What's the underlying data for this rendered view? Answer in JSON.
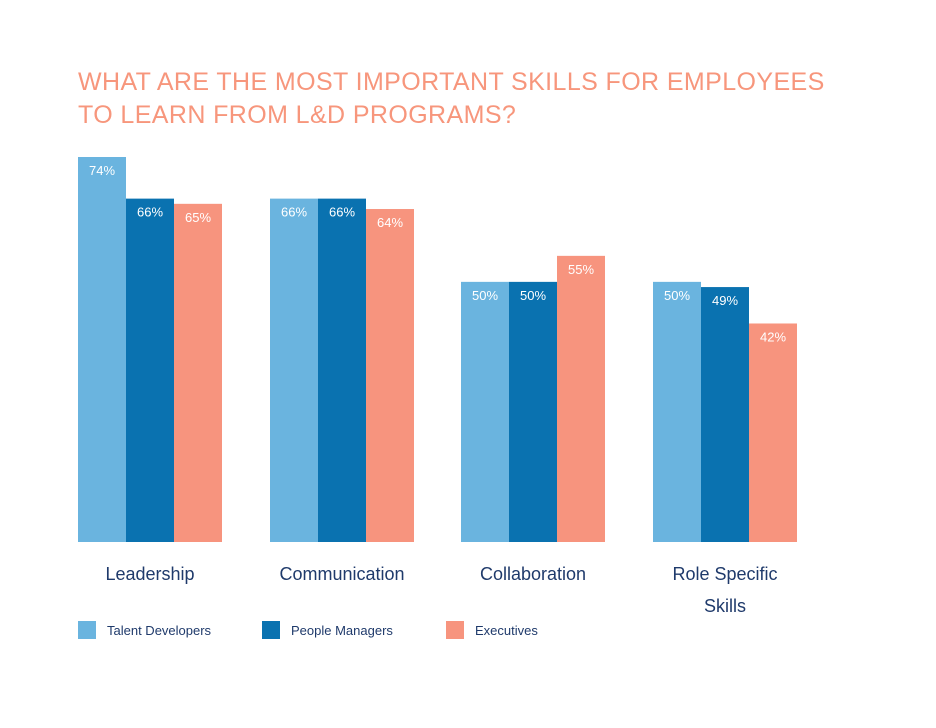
{
  "chart_data": {
    "type": "bar",
    "title": "WHAT ARE THE MOST IMPORTANT SKILLS FOR EMPLOYEES TO LEARN FROM L&D PROGRAMS?",
    "categories": [
      "Leadership",
      "Communication",
      "Collaboration",
      "Role Specific Skills"
    ],
    "series": [
      {
        "name": "Talent Developers",
        "color": "#6ab4df",
        "values": [
          74,
          66,
          50,
          50
        ]
      },
      {
        "name": "People Managers",
        "color": "#0a72b0",
        "values": [
          66,
          66,
          50,
          49
        ]
      },
      {
        "name": "Executives",
        "color": "#f7947e",
        "values": [
          65,
          64,
          55,
          42
        ]
      }
    ],
    "value_suffix": "%",
    "ylim": [
      0,
      74
    ],
    "grid": false,
    "legend_position": "bottom-left"
  }
}
